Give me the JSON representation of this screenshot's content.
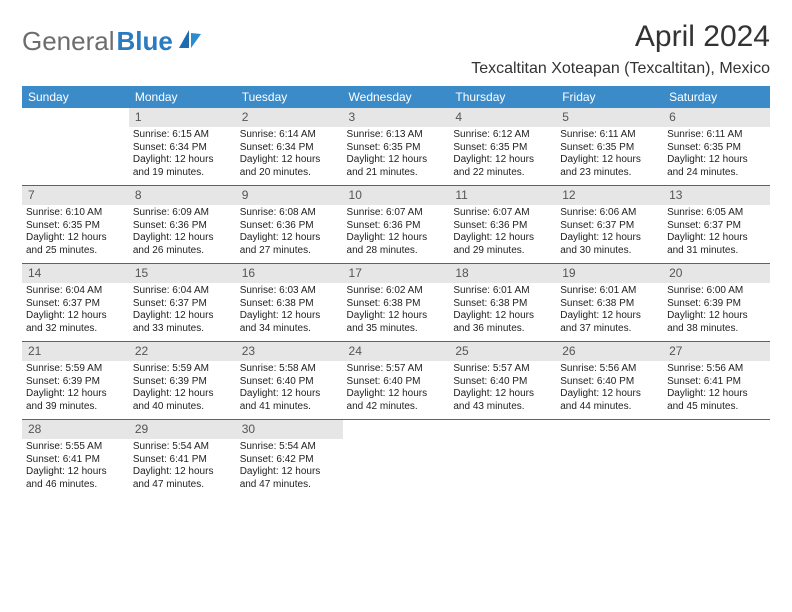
{
  "brand": {
    "part1": "General",
    "part2": "Blue"
  },
  "title": "April 2024",
  "location": "Texcaltitan Xoteapan (Texcaltitan), Mexico",
  "colors": {
    "header_bg": "#3b8bc9",
    "header_text": "#ffffff",
    "daynum_bg": "#e6e6e6",
    "daynum_text": "#555555",
    "rule": "#2b6fa8",
    "brand_gray": "#6d6d6d",
    "brand_blue": "#2b7bbf",
    "text": "#222222",
    "background": "#ffffff"
  },
  "typography": {
    "month_fontsize": 30,
    "location_fontsize": 16,
    "dayheader_fontsize": 12,
    "daynum_fontsize": 12,
    "cell_fontsize": 10,
    "logo_fontsize": 26
  },
  "day_headers": [
    "Sunday",
    "Monday",
    "Tuesday",
    "Wednesday",
    "Thursday",
    "Friday",
    "Saturday"
  ],
  "weeks": [
    [
      {
        "num": "",
        "lines": []
      },
      {
        "num": "1",
        "lines": [
          "Sunrise: 6:15 AM",
          "Sunset: 6:34 PM",
          "Daylight: 12 hours",
          "and 19 minutes."
        ]
      },
      {
        "num": "2",
        "lines": [
          "Sunrise: 6:14 AM",
          "Sunset: 6:34 PM",
          "Daylight: 12 hours",
          "and 20 minutes."
        ]
      },
      {
        "num": "3",
        "lines": [
          "Sunrise: 6:13 AM",
          "Sunset: 6:35 PM",
          "Daylight: 12 hours",
          "and 21 minutes."
        ]
      },
      {
        "num": "4",
        "lines": [
          "Sunrise: 6:12 AM",
          "Sunset: 6:35 PM",
          "Daylight: 12 hours",
          "and 22 minutes."
        ]
      },
      {
        "num": "5",
        "lines": [
          "Sunrise: 6:11 AM",
          "Sunset: 6:35 PM",
          "Daylight: 12 hours",
          "and 23 minutes."
        ]
      },
      {
        "num": "6",
        "lines": [
          "Sunrise: 6:11 AM",
          "Sunset: 6:35 PM",
          "Daylight: 12 hours",
          "and 24 minutes."
        ]
      }
    ],
    [
      {
        "num": "7",
        "lines": [
          "Sunrise: 6:10 AM",
          "Sunset: 6:35 PM",
          "Daylight: 12 hours",
          "and 25 minutes."
        ]
      },
      {
        "num": "8",
        "lines": [
          "Sunrise: 6:09 AM",
          "Sunset: 6:36 PM",
          "Daylight: 12 hours",
          "and 26 minutes."
        ]
      },
      {
        "num": "9",
        "lines": [
          "Sunrise: 6:08 AM",
          "Sunset: 6:36 PM",
          "Daylight: 12 hours",
          "and 27 minutes."
        ]
      },
      {
        "num": "10",
        "lines": [
          "Sunrise: 6:07 AM",
          "Sunset: 6:36 PM",
          "Daylight: 12 hours",
          "and 28 minutes."
        ]
      },
      {
        "num": "11",
        "lines": [
          "Sunrise: 6:07 AM",
          "Sunset: 6:36 PM",
          "Daylight: 12 hours",
          "and 29 minutes."
        ]
      },
      {
        "num": "12",
        "lines": [
          "Sunrise: 6:06 AM",
          "Sunset: 6:37 PM",
          "Daylight: 12 hours",
          "and 30 minutes."
        ]
      },
      {
        "num": "13",
        "lines": [
          "Sunrise: 6:05 AM",
          "Sunset: 6:37 PM",
          "Daylight: 12 hours",
          "and 31 minutes."
        ]
      }
    ],
    [
      {
        "num": "14",
        "lines": [
          "Sunrise: 6:04 AM",
          "Sunset: 6:37 PM",
          "Daylight: 12 hours",
          "and 32 minutes."
        ]
      },
      {
        "num": "15",
        "lines": [
          "Sunrise: 6:04 AM",
          "Sunset: 6:37 PM",
          "Daylight: 12 hours",
          "and 33 minutes."
        ]
      },
      {
        "num": "16",
        "lines": [
          "Sunrise: 6:03 AM",
          "Sunset: 6:38 PM",
          "Daylight: 12 hours",
          "and 34 minutes."
        ]
      },
      {
        "num": "17",
        "lines": [
          "Sunrise: 6:02 AM",
          "Sunset: 6:38 PM",
          "Daylight: 12 hours",
          "and 35 minutes."
        ]
      },
      {
        "num": "18",
        "lines": [
          "Sunrise: 6:01 AM",
          "Sunset: 6:38 PM",
          "Daylight: 12 hours",
          "and 36 minutes."
        ]
      },
      {
        "num": "19",
        "lines": [
          "Sunrise: 6:01 AM",
          "Sunset: 6:38 PM",
          "Daylight: 12 hours",
          "and 37 minutes."
        ]
      },
      {
        "num": "20",
        "lines": [
          "Sunrise: 6:00 AM",
          "Sunset: 6:39 PM",
          "Daylight: 12 hours",
          "and 38 minutes."
        ]
      }
    ],
    [
      {
        "num": "21",
        "lines": [
          "Sunrise: 5:59 AM",
          "Sunset: 6:39 PM",
          "Daylight: 12 hours",
          "and 39 minutes."
        ]
      },
      {
        "num": "22",
        "lines": [
          "Sunrise: 5:59 AM",
          "Sunset: 6:39 PM",
          "Daylight: 12 hours",
          "and 40 minutes."
        ]
      },
      {
        "num": "23",
        "lines": [
          "Sunrise: 5:58 AM",
          "Sunset: 6:40 PM",
          "Daylight: 12 hours",
          "and 41 minutes."
        ]
      },
      {
        "num": "24",
        "lines": [
          "Sunrise: 5:57 AM",
          "Sunset: 6:40 PM",
          "Daylight: 12 hours",
          "and 42 minutes."
        ]
      },
      {
        "num": "25",
        "lines": [
          "Sunrise: 5:57 AM",
          "Sunset: 6:40 PM",
          "Daylight: 12 hours",
          "and 43 minutes."
        ]
      },
      {
        "num": "26",
        "lines": [
          "Sunrise: 5:56 AM",
          "Sunset: 6:40 PM",
          "Daylight: 12 hours",
          "and 44 minutes."
        ]
      },
      {
        "num": "27",
        "lines": [
          "Sunrise: 5:56 AM",
          "Sunset: 6:41 PM",
          "Daylight: 12 hours",
          "and 45 minutes."
        ]
      }
    ],
    [
      {
        "num": "28",
        "lines": [
          "Sunrise: 5:55 AM",
          "Sunset: 6:41 PM",
          "Daylight: 12 hours",
          "and 46 minutes."
        ]
      },
      {
        "num": "29",
        "lines": [
          "Sunrise: 5:54 AM",
          "Sunset: 6:41 PM",
          "Daylight: 12 hours",
          "and 47 minutes."
        ]
      },
      {
        "num": "30",
        "lines": [
          "Sunrise: 5:54 AM",
          "Sunset: 6:42 PM",
          "Daylight: 12 hours",
          "and 47 minutes."
        ]
      },
      {
        "num": "",
        "lines": []
      },
      {
        "num": "",
        "lines": []
      },
      {
        "num": "",
        "lines": []
      },
      {
        "num": "",
        "lines": []
      }
    ]
  ]
}
